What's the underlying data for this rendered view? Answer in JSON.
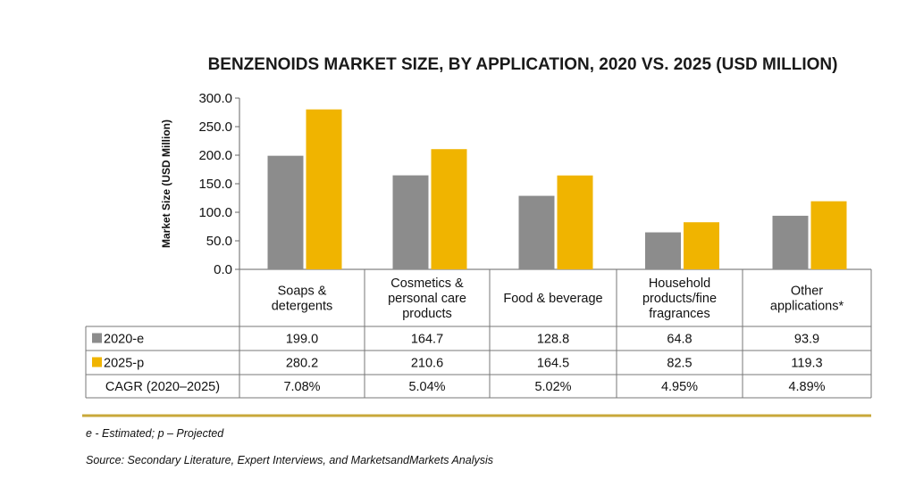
{
  "chart_data": {
    "type": "bar",
    "title": "BENZENOIDS MARKET SIZE, BY APPLICATION, 2020 VS. 2025 (USD MILLION)",
    "ylabel": "Market Size (USD Million)",
    "ylim": [
      0,
      300
    ],
    "yticks": [
      "0.0",
      "50.0",
      "100.0",
      "150.0",
      "200.0",
      "250.0",
      "300.0"
    ],
    "categories": [
      [
        "Soaps &",
        "detergents"
      ],
      [
        "Cosmetics &",
        "personal care",
        "products"
      ],
      [
        "Food & beverage"
      ],
      [
        "Household",
        "products/fine",
        "fragrances"
      ],
      [
        "Other",
        "applications*"
      ]
    ],
    "series": [
      {
        "name": "2020-e",
        "color": "#8c8c8c",
        "values": [
          199.0,
          164.7,
          128.8,
          64.8,
          93.9
        ],
        "labels": [
          "199.0",
          "164.7",
          "128.8",
          "64.8",
          "93.9"
        ]
      },
      {
        "name": "2025-p",
        "color": "#f0b400",
        "values": [
          280.2,
          210.6,
          164.5,
          82.5,
          119.3
        ],
        "labels": [
          "280.2",
          "210.6",
          "164.5",
          "82.5",
          "119.3"
        ]
      }
    ],
    "cagr": {
      "name": "CAGR (2020–2025)",
      "values": [
        "7.08%",
        "5.04%",
        "5.02%",
        "4.95%",
        "4.89%"
      ]
    },
    "grid": false,
    "legend": "table"
  },
  "footnote": "e - Estimated; p – Projected",
  "source": "Source: Secondary Literature, Expert Interviews, and MarketsandMarkets Analysis",
  "colors": {
    "rule": "#c8a83a",
    "table_border": "#777777"
  }
}
